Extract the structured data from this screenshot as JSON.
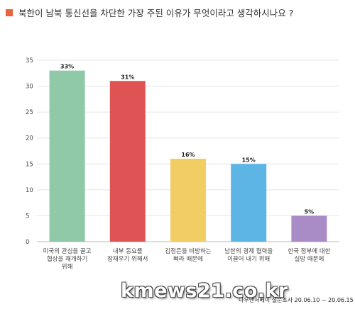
{
  "header": {
    "title": "북한이 남북 통신선을 차단한 가장 주된 이유가 무엇이라고 생각하시나요 ?",
    "accent_color": "#e8643c"
  },
  "footer": {
    "watermark": "kmews21.co.kr",
    "source": "나우앤서베이 설문조사 20.06.10 ~ 20.06.15"
  },
  "chart_data": {
    "type": "bar",
    "categories": [
      [
        "미국의 관심을 끌고",
        "협상을 재개하기",
        "위해"
      ],
      [
        "내부 동요를",
        "잠재우기 위해서"
      ],
      [
        "김정은을 비방하는",
        "삐라 때문에"
      ],
      [
        "남한의 경제 협력을",
        "이끌어 내기 위해"
      ],
      [
        "한국 정부에 대한",
        "실망 때문에"
      ]
    ],
    "values": [
      33,
      31,
      16,
      15,
      5
    ],
    "value_labels": [
      "33%",
      "31%",
      "16%",
      "15%",
      "5%"
    ],
    "colors": [
      "#8fc9a8",
      "#df5354",
      "#f2cd64",
      "#5db5e6",
      "#a98cc6"
    ],
    "yticks": [
      0,
      5,
      10,
      15,
      20,
      25,
      30,
      35
    ],
    "ylim": [
      0,
      35
    ],
    "grid": true
  }
}
